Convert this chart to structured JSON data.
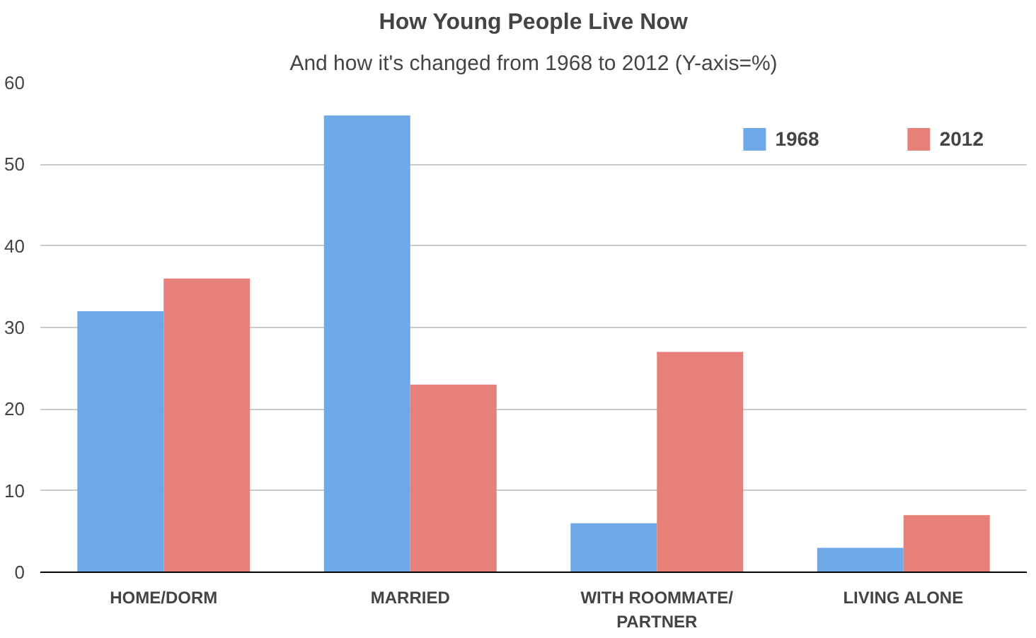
{
  "chart_data": {
    "type": "bar",
    "title": "How Young People Live Now",
    "subtitle": "And how it's changed from 1968 to 2012 (Y-axis=%)",
    "categories": [
      "HOME/DORM",
      "MARRIED",
      "WITH ROOMMATE/ PARTNER",
      "LIVING ALONE"
    ],
    "series": [
      {
        "name": "1968",
        "color": "#6fa8e6",
        "values": [
          32,
          56,
          6,
          3
        ]
      },
      {
        "name": "2012",
        "color": "#e8807a",
        "values": [
          36,
          23,
          27,
          7
        ]
      }
    ],
    "ylim": [
      0,
      60
    ],
    "yticks": [
      0,
      10,
      20,
      30,
      40,
      50,
      60
    ],
    "grid": "y",
    "legend": "top right"
  }
}
